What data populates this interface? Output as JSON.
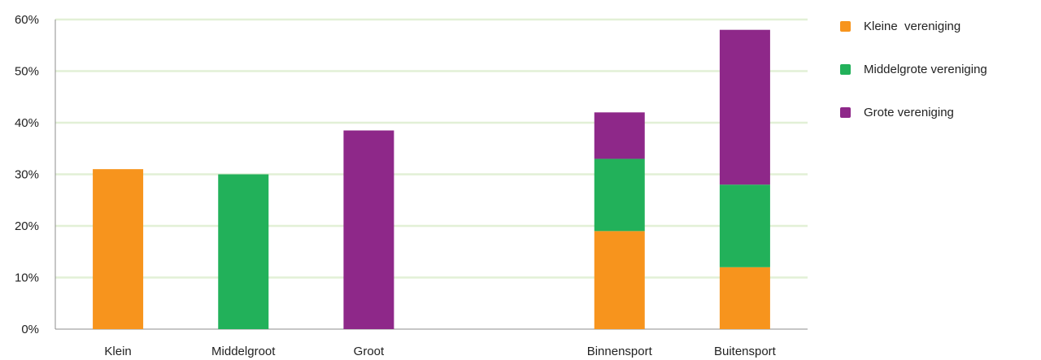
{
  "colors": {
    "gridline": "#e2f0d6",
    "axis": "#8c8c8c"
  },
  "chart_data": {
    "type": "bar",
    "stacked": true,
    "categories": [
      "Klein",
      "Middelgroot",
      "Groot",
      "",
      "Binnensport",
      "Buitensport"
    ],
    "series": [
      {
        "name": "Kleine  vereniging",
        "color": "#f7941d",
        "values": [
          31,
          0,
          0,
          null,
          19,
          12
        ]
      },
      {
        "name": "Middelgrote vereniging",
        "color": "#22b15a",
        "values": [
          0,
          30,
          0,
          null,
          14,
          16
        ]
      },
      {
        "name": "Grote vereniging",
        "color": "#8e2889",
        "values": [
          0,
          0,
          38.5,
          null,
          9,
          30
        ]
      }
    ],
    "yticks": [
      "0%",
      "10%",
      "20%",
      "30%",
      "40%",
      "50%",
      "60%"
    ],
    "ylim": [
      0,
      60
    ],
    "grid": true,
    "legend_position": "right"
  }
}
